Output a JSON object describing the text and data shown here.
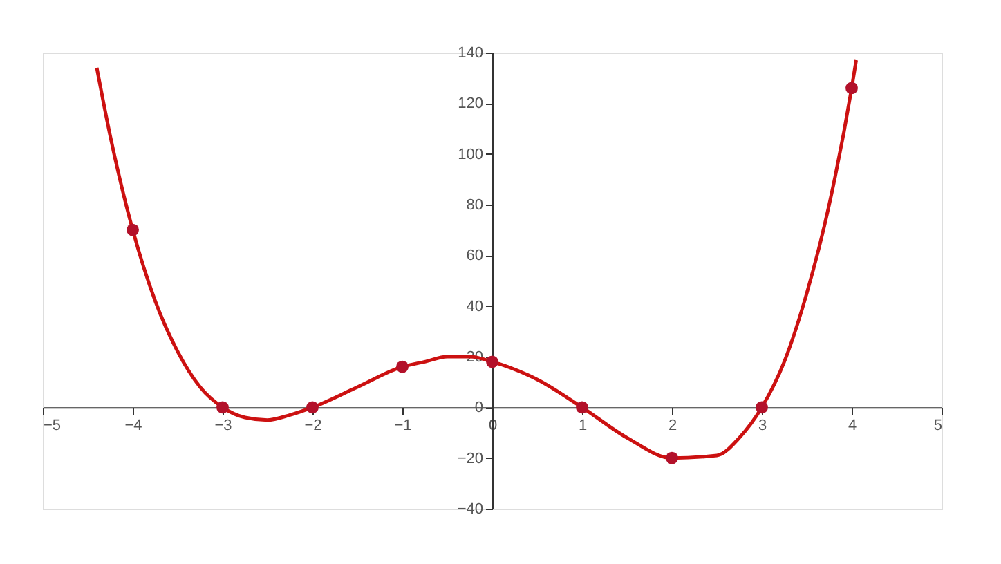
{
  "chart_data": {
    "type": "line",
    "xlim": [
      -5,
      5
    ],
    "xticks": [
      -5,
      -4,
      -3,
      -2,
      -1,
      0,
      1,
      2,
      3,
      4,
      5
    ],
    "ylim": [
      -40,
      140
    ],
    "yticks": [
      -40,
      -20,
      0,
      20,
      40,
      60,
      80,
      100,
      120,
      140
    ],
    "grid": false,
    "series": [
      {
        "type": "line",
        "color": "#cc1111",
        "marker": "none",
        "line_style": "solid",
        "x": [
          -4.4,
          -4.25,
          -4,
          -3.75,
          -3.5,
          -3.25,
          -3,
          -2.75,
          -2.5,
          -2.25,
          -2,
          -1.5,
          -1,
          -0.75,
          -0.5,
          -0.25,
          0,
          0.5,
          1,
          1.5,
          2,
          2.5,
          2.75,
          3,
          3.25,
          3.5,
          3.75,
          4,
          4.05
        ],
        "values": [
          134,
          107,
          70,
          42,
          22,
          8,
          0,
          -4,
          -5,
          -3,
          0,
          8,
          16,
          18,
          20,
          20,
          18,
          11,
          0,
          -12,
          -20,
          -19,
          -12,
          0,
          18,
          45,
          80,
          126,
          137
        ]
      },
      {
        "type": "scatter",
        "color": "#b3112a",
        "marker": "circle",
        "x": [
          -4,
          -3,
          -2,
          -1,
          0,
          1,
          2,
          3,
          4
        ],
        "values": [
          70,
          0,
          0,
          16,
          18,
          0,
          -20,
          0,
          126
        ]
      }
    ]
  }
}
